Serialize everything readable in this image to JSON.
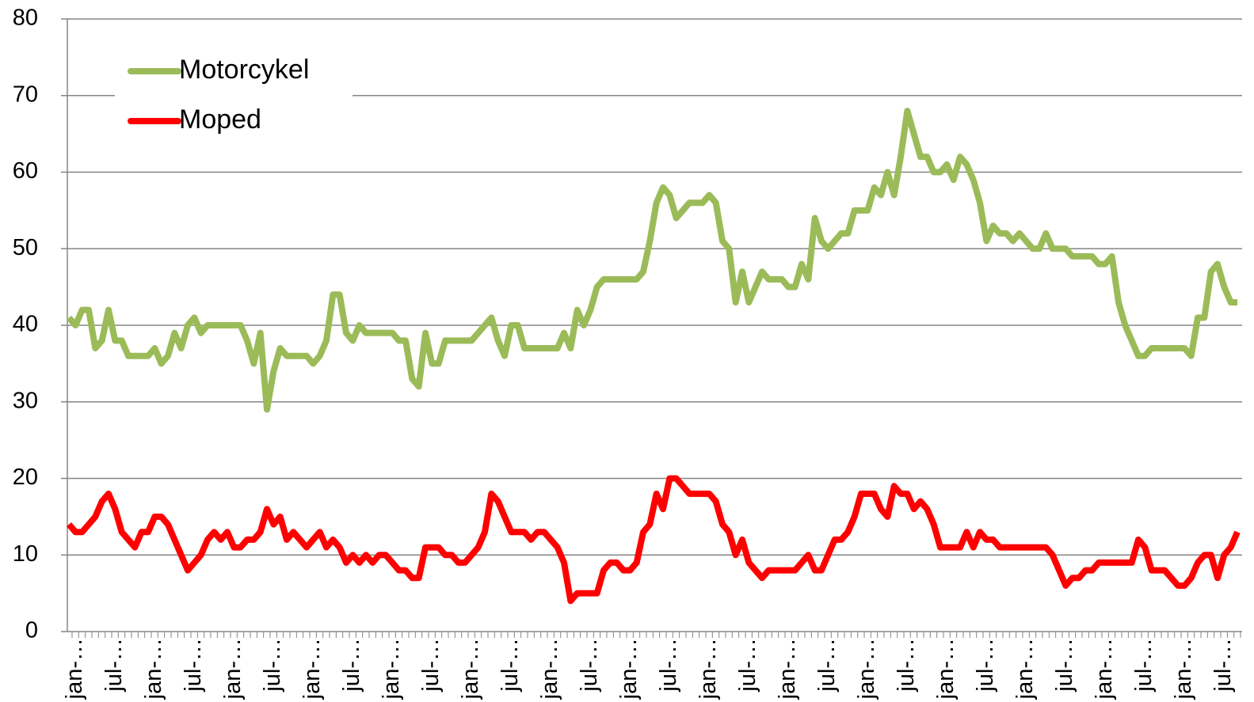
{
  "chart_data": {
    "type": "line",
    "categories": [
      null,
      "jan-…",
      null,
      null,
      null,
      null,
      null,
      "jul-…",
      null,
      null,
      null,
      null,
      null,
      "jan-…",
      null,
      null,
      null,
      null,
      null,
      "jul-…",
      null,
      null,
      null,
      null,
      null,
      "jan-…",
      null,
      null,
      null,
      null,
      null,
      "jul-…",
      null,
      null,
      null,
      null,
      null,
      "jan-…",
      null,
      null,
      null,
      null,
      null,
      "jul-…",
      null,
      null,
      null,
      null,
      null,
      "jan-…",
      null,
      null,
      null,
      null,
      null,
      "jul-…",
      null,
      null,
      null,
      null,
      null,
      "jan-…",
      null,
      null,
      null,
      null,
      null,
      "jul-…",
      null,
      null,
      null,
      null,
      null,
      "jan-…",
      null,
      null,
      null,
      null,
      null,
      "jul-…",
      null,
      null,
      null,
      null,
      null,
      "jan-…",
      null,
      null,
      null,
      null,
      null,
      "jul-…",
      null,
      null,
      null,
      null,
      null,
      "jan-…",
      null,
      null,
      null,
      null,
      null,
      "jul-…",
      null,
      null,
      null,
      null,
      null,
      "jan-…",
      null,
      null,
      null,
      null,
      null,
      "jul-…",
      null,
      null,
      null,
      null,
      null,
      "jan-…",
      null,
      null,
      null,
      null,
      null,
      "jul-…",
      null,
      null,
      null,
      null,
      null,
      "jan-…",
      null,
      null,
      null,
      null,
      null,
      "jul-…",
      null,
      null,
      null,
      null,
      null,
      "jan-…",
      null,
      null,
      null,
      null,
      null,
      "jul-…",
      null,
      null,
      null,
      null,
      null,
      "jan-…",
      null,
      null,
      null,
      null,
      null,
      "jul-…",
      null,
      null,
      null,
      null,
      null,
      "jan-…",
      null,
      null,
      null,
      null,
      null,
      "jul-…",
      null,
      null
    ],
    "series": [
      {
        "name": "Motorcykel",
        "color": "#9bbb59",
        "values": [
          41,
          40,
          42,
          42,
          37,
          38,
          42,
          38,
          38,
          36,
          36,
          36,
          36,
          37,
          35,
          36,
          39,
          37,
          40,
          41,
          39,
          40,
          40,
          40,
          40,
          40,
          40,
          38,
          35,
          39,
          29,
          34,
          37,
          36,
          36,
          36,
          36,
          35,
          36,
          38,
          44,
          44,
          39,
          38,
          40,
          39,
          39,
          39,
          39,
          39,
          38,
          38,
          33,
          32,
          39,
          35,
          35,
          38,
          38,
          38,
          38,
          38,
          39,
          40,
          41,
          38,
          36,
          40,
          40,
          37,
          37,
          37,
          37,
          37,
          37,
          39,
          37,
          42,
          40,
          42,
          45,
          46,
          46,
          46,
          46,
          46,
          46,
          47,
          51,
          56,
          58,
          57,
          54,
          55,
          56,
          56,
          56,
          57,
          56,
          51,
          50,
          43,
          47,
          43,
          45,
          47,
          46,
          46,
          46,
          45,
          45,
          48,
          46,
          54,
          51,
          50,
          51,
          52,
          52,
          55,
          55,
          55,
          58,
          57,
          60,
          57,
          62,
          68,
          65,
          62,
          62,
          60,
          60,
          61,
          59,
          62,
          61,
          59,
          56,
          51,
          53,
          52,
          52,
          51,
          52,
          51,
          50,
          50,
          52,
          50,
          50,
          50,
          49,
          49,
          49,
          49,
          48,
          48,
          49,
          43,
          40,
          38,
          36,
          36,
          37,
          37,
          37,
          37,
          37,
          37,
          36,
          41,
          41,
          47,
          48,
          45,
          43,
          43
        ]
      },
      {
        "name": "Moped",
        "color": "#ff0000",
        "values": [
          14,
          13,
          13,
          14,
          15,
          17,
          18,
          16,
          13,
          12,
          11,
          13,
          13,
          15,
          15,
          14,
          12,
          10,
          8,
          9,
          10,
          12,
          13,
          12,
          13,
          11,
          11,
          12,
          12,
          13,
          16,
          14,
          15,
          12,
          13,
          12,
          11,
          12,
          13,
          11,
          12,
          11,
          9,
          10,
          9,
          10,
          9,
          10,
          10,
          9,
          8,
          8,
          7,
          7,
          11,
          11,
          11,
          10,
          10,
          9,
          9,
          10,
          11,
          13,
          18,
          17,
          15,
          13,
          13,
          13,
          12,
          13,
          13,
          12,
          11,
          9,
          4,
          5,
          5,
          5,
          5,
          8,
          9,
          9,
          8,
          8,
          9,
          13,
          14,
          18,
          16,
          20,
          20,
          19,
          18,
          18,
          18,
          18,
          17,
          14,
          13,
          10,
          12,
          9,
          8,
          7,
          8,
          8,
          8,
          8,
          8,
          9,
          10,
          8,
          8,
          10,
          12,
          12,
          13,
          15,
          18,
          18,
          18,
          16,
          15,
          19,
          18,
          18,
          16,
          17,
          16,
          14,
          11,
          11,
          11,
          11,
          13,
          11,
          13,
          12,
          12,
          11,
          11,
          11,
          11,
          11,
          11,
          11,
          11,
          10,
          8,
          6,
          7,
          7,
          8,
          8,
          9,
          9,
          9,
          9,
          9,
          9,
          12,
          11,
          8,
          8,
          8,
          7,
          6,
          6,
          7,
          9,
          10,
          10,
          7,
          10,
          11,
          13
        ]
      }
    ],
    "ylim": [
      0,
      80
    ],
    "yticks": [
      0,
      10,
      20,
      30,
      40,
      50,
      60,
      70,
      80
    ],
    "grid": true,
    "legend": "upper left"
  }
}
